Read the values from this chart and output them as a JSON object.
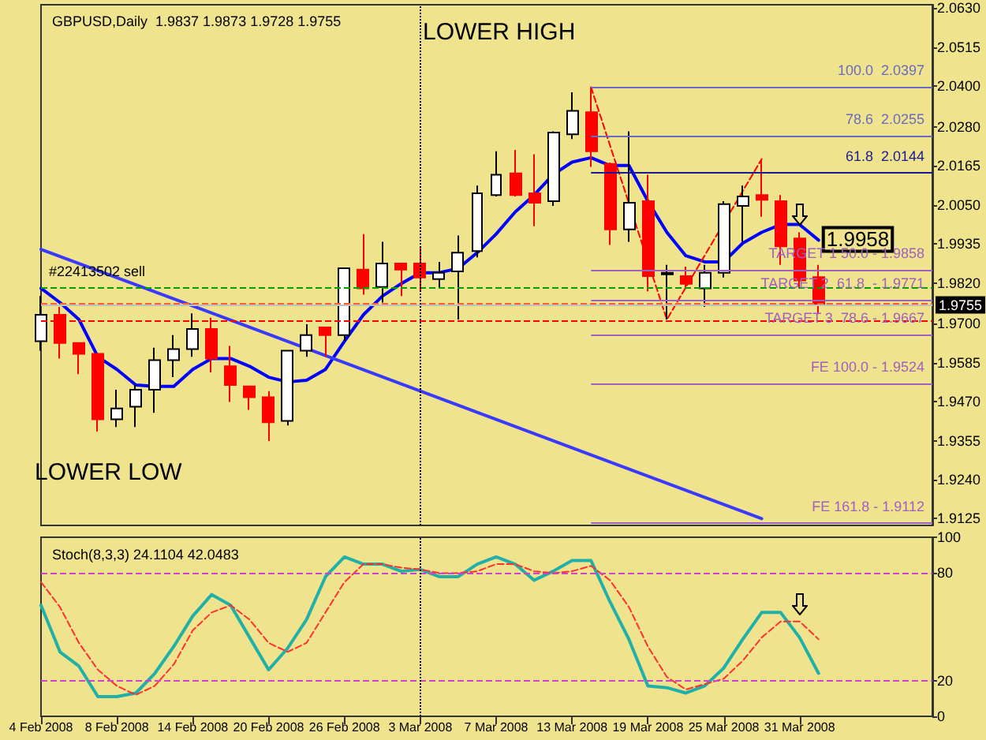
{
  "chart_data": [
    {
      "type": "candlestick",
      "title": "GBPUSD,Daily  1.9837 1.9873 1.9728 1.9755",
      "marker": "none",
      "tick_labels": "y",
      "categories": [
        "4 Feb 2008",
        null,
        null,
        null,
        "8 Feb 2008",
        null,
        null,
        null,
        "14 Feb 2008",
        null,
        null,
        null,
        "20 Feb 2008",
        null,
        null,
        null,
        "26 Feb 2008",
        null,
        null,
        null,
        "3 Mar 2008",
        null,
        null,
        null,
        "7 Mar 2008",
        null,
        null,
        null,
        "13 Mar 2008",
        null,
        null,
        null,
        "19 Mar 2008",
        null,
        null,
        null,
        "25 Mar 2008",
        null,
        null,
        null,
        "31 Mar 2008",
        null,
        null,
        null,
        null,
        null,
        null,
        null
      ],
      "ohlc": [
        [
          1.9648,
          1.9781,
          1.962,
          1.9726
        ],
        [
          1.9726,
          1.9749,
          1.9597,
          1.9643
        ],
        [
          1.9643,
          1.9645,
          1.9551,
          1.9611
        ],
        [
          1.9611,
          1.9611,
          1.9382,
          1.9418
        ],
        [
          1.9418,
          1.9505,
          1.9395,
          1.945
        ],
        [
          1.9455,
          1.9519,
          1.9395,
          1.9505
        ],
        [
          1.9505,
          1.9629,
          1.9437,
          1.9592
        ],
        [
          1.9592,
          1.9666,
          1.9542,
          1.9625
        ],
        [
          1.9625,
          1.973,
          1.9602,
          1.9684
        ],
        [
          1.9684,
          1.9717,
          1.9556,
          1.9597
        ],
        [
          1.9574,
          1.9634,
          1.9469,
          1.9519
        ],
        [
          1.9515,
          1.9515,
          1.9446,
          1.9483
        ],
        [
          1.9483,
          1.9501,
          1.9354,
          1.9409
        ],
        [
          1.9413,
          1.962,
          1.94,
          1.962
        ],
        [
          1.962,
          1.9698,
          1.9602,
          1.9666
        ],
        [
          1.9689,
          1.9689,
          1.9602,
          1.9666
        ],
        [
          1.9666,
          1.9863,
          1.965,
          1.9863
        ],
        [
          1.9859,
          1.9964,
          1.9785,
          1.9804
        ],
        [
          1.9808,
          1.9941,
          1.9762,
          1.9877
        ],
        [
          1.9877,
          1.9877,
          1.9781,
          1.9859
        ],
        [
          1.9877,
          1.9928,
          1.9795,
          1.9836
        ],
        [
          1.9831,
          1.9882,
          1.9804,
          1.985
        ],
        [
          1.9854,
          1.996,
          1.9712,
          1.9909
        ],
        [
          1.9914,
          2.0107,
          1.9895,
          2.0084
        ],
        [
          2.0079,
          2.0208,
          2.0075,
          2.0139
        ],
        [
          2.0143,
          2.0212,
          2.0075,
          2.0079
        ],
        [
          2.0084,
          2.0199,
          1.9987,
          2.0056
        ],
        [
          2.0061,
          2.0267,
          2.0047,
          2.0263
        ],
        [
          2.0258,
          2.0382,
          2.0244,
          2.0327
        ],
        [
          2.0323,
          2.0397,
          2.0162,
          2.0208
        ],
        [
          2.0171,
          2.0175,
          1.9932,
          1.9978
        ],
        [
          1.9978,
          2.0267,
          1.9941,
          2.0056
        ],
        [
          2.0061,
          2.0139,
          1.9795,
          1.984
        ],
        [
          1.9845,
          1.9873,
          1.9712,
          1.985
        ],
        [
          1.984,
          1.9868,
          1.9804,
          1.9817
        ],
        [
          1.9804,
          1.9873,
          1.9749,
          1.985
        ],
        [
          1.985,
          2.0061,
          1.9836,
          2.0052
        ],
        [
          2.0047,
          2.0107,
          1.9941,
          2.0075
        ],
        [
          2.0079,
          2.0185,
          2.0015,
          2.0065
        ],
        [
          2.0061,
          2.0079,
          1.9873,
          1.9928
        ],
        [
          1.9951,
          1.9969,
          1.9804,
          1.9827
        ],
        [
          1.9837,
          1.9873,
          1.9728,
          1.9755
        ],
        null,
        null,
        null,
        null,
        null,
        null
      ],
      "colors": [
        "#ffffff",
        "#ff0000",
        "#ff0000",
        "#ff0000",
        "#ffffff",
        "#ffffff",
        "#ffffff",
        "#ffffff",
        "#ffffff",
        "#ff0000",
        "#ff0000",
        "#ff0000",
        "#ff0000",
        "#ffffff",
        "#ffffff",
        "#ff0000",
        "#ffffff",
        "#ff0000",
        "#ffffff",
        "#ff0000",
        "#ff0000",
        "#ffffff",
        "#ffffff",
        "#ffffff",
        "#ffffff",
        "#ff0000",
        "#ff0000",
        "#ffffff",
        "#ffffff",
        "#ff0000",
        "#ff0000",
        "#ffffff",
        "#ff0000",
        "#ffffff",
        "#ff0000",
        "#ffffff",
        "#ffffff",
        "#ffffff",
        "#ff0000",
        "#ff0000",
        "#ff0000",
        "#ff0000",
        null,
        null,
        null,
        null,
        null,
        null
      ],
      "series": [
        {
          "type": "line",
          "color": "#0000ff",
          "values": [
            1.9804,
            1.9762,
            1.9712,
            1.9602,
            1.9565,
            1.9519,
            1.9515,
            1.9515,
            1.9565,
            1.9597,
            1.9597,
            1.9574,
            1.9542,
            1.9528,
            1.9533,
            1.9565,
            1.9648,
            1.9726,
            1.9781,
            1.9818,
            1.985,
            1.985,
            1.9863,
            1.9909,
            1.9964,
            2.0029,
            2.0079,
            2.0139,
            2.0176,
            2.0189,
            2.0166,
            2.0166,
            2.0061,
            1.9969,
            1.99,
            1.9882,
            1.9882,
            1.9937,
            1.9969,
            1.9992,
            1.9992,
            1.9946,
            null,
            null,
            null,
            null,
            null,
            null
          ]
        },
        {
          "type": "line",
          "color": "#3a3aff",
          "values": [
            1.9919,
            null,
            null,
            null,
            null,
            null,
            null,
            null,
            null,
            null,
            null,
            null,
            null,
            null,
            null,
            null,
            null,
            null,
            null,
            null,
            null,
            null,
            null,
            null,
            null,
            null,
            null,
            null,
            null,
            null,
            null,
            null,
            null,
            null,
            null,
            null,
            null,
            null,
            1.9125,
            null,
            null,
            null,
            null,
            null,
            null,
            null,
            null,
            null
          ]
        },
        {
          "type": "line",
          "color": "#ff0000",
          "line_style": "dashed",
          "values": [
            null,
            null,
            null,
            null,
            null,
            null,
            null,
            null,
            null,
            null,
            null,
            null,
            null,
            null,
            null,
            null,
            null,
            null,
            null,
            null,
            null,
            null,
            null,
            null,
            null,
            null,
            null,
            null,
            null,
            2.0397,
            null,
            null,
            null,
            1.9712,
            null,
            null,
            null,
            null,
            2.0185,
            null,
            null,
            null,
            null,
            null,
            null,
            null,
            null,
            null
          ]
        }
      ],
      "ylim": [
        1.9105,
        2.064
      ],
      "yticks": [
        {
          "value": 1.9125,
          "label": "1.9125"
        },
        {
          "value": 1.924,
          "label": "1.9240"
        },
        {
          "value": 1.9355,
          "label": "1.9355"
        },
        {
          "value": 1.947,
          "label": "1.9470"
        },
        {
          "value": 1.9585,
          "label": "1.9585"
        },
        {
          "value": 1.97,
          "label": "1.9700"
        },
        {
          "value": 1.982,
          "label": "1.9820"
        },
        {
          "value": 1.9935,
          "label": "1.9935"
        },
        {
          "value": 2.005,
          "label": "2.0050"
        },
        {
          "value": 2.0165,
          "label": "2.0165"
        },
        {
          "value": 2.028,
          "label": "2.0280"
        },
        {
          "value": 2.04,
          "label": "2.0400"
        },
        {
          "value": 2.0515,
          "label": "2.0515"
        },
        {
          "value": 2.063,
          "label": "2.0630"
        }
      ],
      "ref_lines": [
        {
          "axis": "y",
          "value": 2.0397,
          "label": "100.0  2.0397",
          "color": "#6a6ac0"
        },
        {
          "axis": "y",
          "value": 2.0255,
          "label": "78.6  2.0255",
          "color": "#6a6ac0"
        },
        {
          "axis": "y",
          "value": 2.0144,
          "label": "61.8  2.0144",
          "color": "#1a1a90"
        },
        {
          "axis": "y",
          "value": 1.9858,
          "label": "TARGET 1 50.0 - 1.9858",
          "color": "#a060c0"
        },
        {
          "axis": "y",
          "value": 1.9771,
          "label": "TARGET 2  61.8  - 1.9771",
          "color": "#a060c0"
        },
        {
          "axis": "y",
          "value": 1.9667,
          "label": "TARGET 3  78.6 - 1.9667",
          "color": "#a060c0"
        },
        {
          "axis": "y",
          "value": 1.9524,
          "label": "FE 100.0 - 1.9524",
          "color": "#a060c0"
        },
        {
          "axis": "y",
          "value": 1.9112,
          "label": "FE 161.8 - 1.9112",
          "color": "#a060c0"
        },
        {
          "axis": "y",
          "value": 1.9804,
          "label": "#22413502 sell",
          "color": "#00a000",
          "line_style": "dashed"
        },
        {
          "axis": "y",
          "value": 1.9762,
          "color": "#ff6030",
          "line_style": "dashed"
        },
        {
          "axis": "y",
          "value": 1.9755,
          "label": "1.9755",
          "color": "#c0c0c0",
          "line_style": "solid"
        },
        {
          "axis": "y",
          "value": 1.9708,
          "color": "#ff0000",
          "line_style": "dashed"
        },
        {
          "axis": "x",
          "value": "3 Mar 2008",
          "color": "#000000",
          "line_style": "dotted"
        }
      ],
      "annotations": [
        "LOWER HIGH",
        "LOWER LOW",
        {
          "text": "1.9958",
          "y": 1.9946
        }
      ]
    },
    {
      "type": "line",
      "title": "Stoch(8,3,3) 24.1104 42.0483",
      "marker": "none",
      "categories": [
        "4 Feb 2008",
        null,
        null,
        null,
        "8 Feb 2008",
        null,
        null,
        null,
        "14 Feb 2008",
        null,
        null,
        null,
        "20 Feb 2008",
        null,
        null,
        null,
        "26 Feb 2008",
        null,
        null,
        null,
        "3 Mar 2008",
        null,
        null,
        null,
        "7 Mar 2008",
        null,
        null,
        null,
        "13 Mar 2008",
        null,
        null,
        null,
        "19 Mar 2008",
        null,
        null,
        null,
        "25 Mar 2008",
        null,
        null,
        null,
        "31 Mar 2008",
        null,
        null,
        null,
        null,
        null,
        null,
        null
      ],
      "series": [
        {
          "color": "#20b0a8",
          "values": [
            62,
            36,
            28,
            11,
            11,
            13,
            24,
            39,
            56,
            68,
            62,
            44,
            26,
            38,
            54,
            78,
            89,
            85,
            85,
            81,
            82,
            78,
            78,
            85,
            89,
            85,
            76,
            81,
            87,
            87,
            64,
            43,
            17,
            16,
            13,
            17,
            27,
            43,
            58,
            58,
            44,
            24,
            null,
            null,
            null,
            null,
            null,
            null
          ]
        },
        {
          "color": "#ff3030",
          "line_style": "dashed",
          "values": [
            75,
            61,
            41,
            26,
            17,
            12,
            17,
            29,
            48,
            58,
            62,
            54,
            41,
            36,
            41,
            58,
            75,
            85,
            85,
            83,
            82,
            80,
            80,
            81,
            85,
            85,
            81,
            80,
            81,
            84,
            76,
            61,
            39,
            22,
            15,
            18,
            21,
            31,
            44,
            53,
            53,
            43,
            null,
            null,
            null,
            null,
            null,
            null
          ]
        }
      ],
      "ylim": [
        0,
        100
      ],
      "yticks": [
        0,
        20,
        80,
        100
      ],
      "ref_lines": [
        {
          "axis": "y",
          "value": 80,
          "color": "#cc44cc",
          "line_style": "dashed"
        },
        {
          "axis": "y",
          "value": 20,
          "color": "#cc44cc",
          "line_style": "dashed"
        },
        {
          "axis": "x",
          "value": "3 Mar 2008",
          "color": "#000000",
          "line_style": "dotted"
        }
      ]
    }
  ]
}
